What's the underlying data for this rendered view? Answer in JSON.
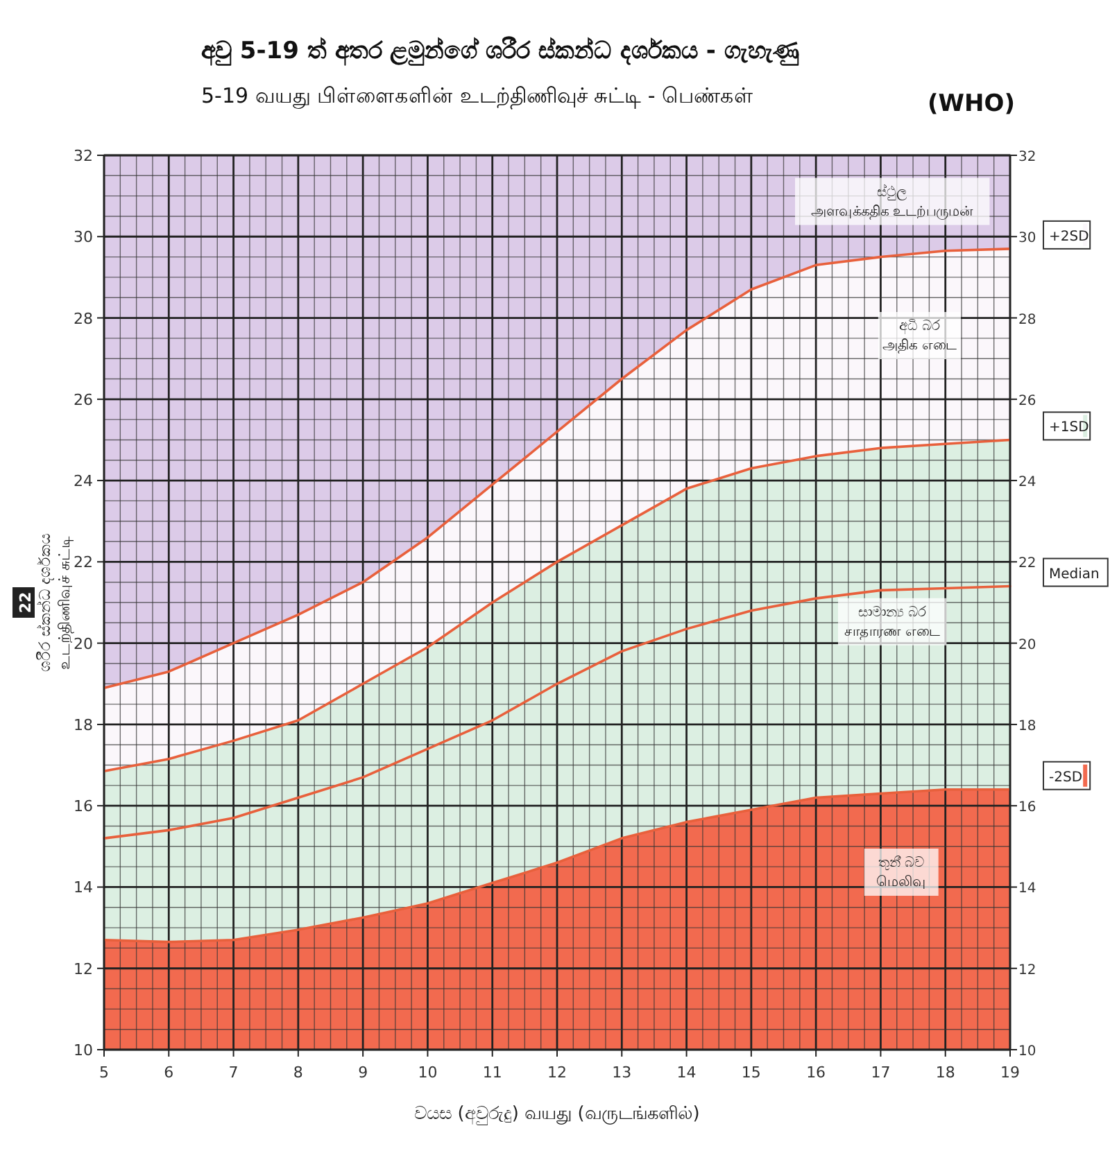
{
  "chart_data": {
    "type": "line",
    "title": "අවු 5-19 ත් අතර ළමුන්ගේ ශරීර ස්කන්ධ දර්ශකය - ගැහැණු",
    "subtitle": "5-19 வயது பிள்ளைகளின் உடற்திணிவுச் சுட்டி - பெண்கள்",
    "xlabel": "වයස (අවුරුදු) வயது (வருடங்களில்)",
    "ylabel": "ශරීර ස්කන්ධ දර්ශකය\nஉடற்திணிவுச் சுட்டி",
    "x": [
      5,
      6,
      7,
      8,
      9,
      10,
      11,
      12,
      13,
      14,
      15,
      16,
      17,
      18,
      19
    ],
    "xlim": [
      5,
      19
    ],
    "xticks": [
      5,
      6,
      7,
      8,
      9,
      10,
      11,
      12,
      13,
      14,
      15,
      16,
      17,
      18,
      19
    ],
    "ylim": [
      10,
      32
    ],
    "yticks": [
      10,
      12,
      14,
      16,
      18,
      20,
      22,
      24,
      26,
      28,
      30,
      32
    ],
    "y2lim": [
      10,
      32
    ],
    "y2ticks": [
      10,
      12,
      14,
      16,
      18,
      20,
      22,
      24,
      26,
      28,
      30,
      32
    ],
    "grid": true,
    "line_style": "solid",
    "series": [
      {
        "name": "+2SD",
        "type": "area",
        "color": "#fbf7fb",
        "values": [
          18.9,
          19.3,
          20.0,
          20.7,
          21.5,
          22.6,
          23.9,
          25.2,
          26.5,
          27.7,
          28.7,
          29.3,
          29.5,
          29.65,
          29.7
        ]
      },
      {
        "name": "+1SD",
        "type": "area",
        "color": "#dcefe2",
        "values": [
          16.85,
          17.15,
          17.6,
          18.1,
          19.0,
          19.9,
          21.0,
          22.0,
          22.9,
          23.8,
          24.3,
          24.6,
          24.8,
          24.9,
          25.0
        ]
      },
      {
        "name": "Median",
        "color": "#e8603c",
        "values": [
          15.2,
          15.4,
          15.7,
          16.2,
          16.7,
          17.4,
          18.1,
          19.0,
          19.8,
          20.35,
          20.8,
          21.1,
          21.3,
          21.35,
          21.4
        ]
      },
      {
        "name": "-2SD",
        "type": "area",
        "color": "#f26a4f",
        "values": [
          12.7,
          12.65,
          12.7,
          12.95,
          13.25,
          13.6,
          14.1,
          14.6,
          15.2,
          15.6,
          15.9,
          16.2,
          16.3,
          16.4,
          16.4
        ]
      }
    ],
    "annotations": [
      "ස්ථුල\nஅளவுக்கதிக உடற்பருமன்",
      "අධි බර\nஅதிக எடை",
      "සාමාන්‍ය බර\nசாதாரண எடை",
      "තුනී බව\nமெலிவு",
      "(WHO)",
      "22"
    ]
  }
}
